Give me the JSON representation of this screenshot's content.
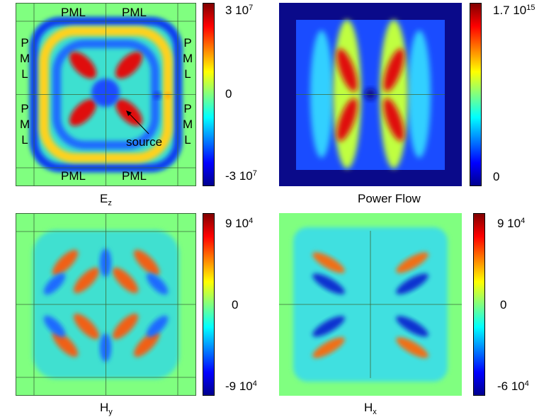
{
  "chart_data": [
    {
      "type": "heatmap",
      "title": "",
      "caption_main": "E",
      "caption_sub": "z",
      "colormap": "jet",
      "colorbar_ticks": [
        {
          "mantissa": "3 10",
          "exponent": "7"
        },
        {
          "mantissa": "0",
          "exponent": ""
        },
        {
          "mantissa": "-3 10",
          "exponent": "7"
        }
      ],
      "annotations": {
        "pml_top_left": "PML",
        "pml_top_right": "PML",
        "pml_bottom_left": "PML",
        "pml_bottom_right": "PML",
        "pml_vertical": [
          "P",
          "M",
          "L"
        ],
        "source_label": "source"
      }
    },
    {
      "type": "heatmap",
      "title": "",
      "caption_main": "Power Flow",
      "caption_sub": "",
      "colormap": "jet",
      "colorbar_ticks": [
        {
          "mantissa": "1.7 10",
          "exponent": "15"
        },
        {
          "mantissa": "0",
          "exponent": ""
        }
      ]
    },
    {
      "type": "heatmap",
      "title": "",
      "caption_main": "H",
      "caption_sub": "y",
      "colormap": "jet",
      "colorbar_ticks": [
        {
          "mantissa": "9 10",
          "exponent": "4"
        },
        {
          "mantissa": "0",
          "exponent": ""
        },
        {
          "mantissa": "-9 10",
          "exponent": "4"
        }
      ]
    },
    {
      "type": "heatmap",
      "title": "",
      "caption_main": "H",
      "caption_sub": "x",
      "colormap": "jet",
      "colorbar_ticks": [
        {
          "mantissa": "9 10",
          "exponent": "4"
        },
        {
          "mantissa": "0",
          "exponent": ""
        },
        {
          "mantissa": "-6 10",
          "exponent": "4"
        }
      ]
    }
  ]
}
